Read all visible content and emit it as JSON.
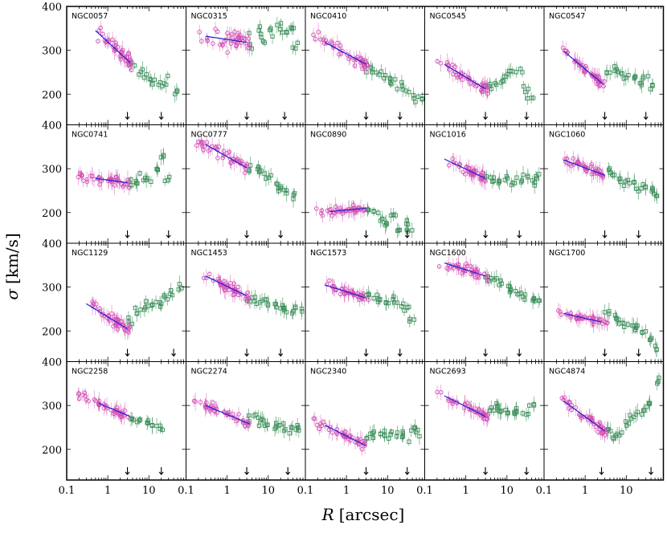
{
  "chart_data": {
    "type": "scatter",
    "layout": "small-multiples",
    "rows": 4,
    "cols": 5,
    "xlabel_symbol": "R",
    "xlabel_unit": "[arcsec]",
    "ylabel_symbol": "σ",
    "ylabel_unit": "[km/s]",
    "xscale": "log",
    "xlim": [
      0.1,
      80
    ],
    "ylim": [
      130,
      400
    ],
    "xticks": [
      0.1,
      1,
      10
    ],
    "xtick_labels": [
      "0.1",
      "1",
      "10"
    ],
    "yticks": [
      200,
      300,
      400
    ],
    "ytick_labels": [
      "200",
      "300",
      "400"
    ],
    "series_styles": [
      {
        "name": "inner (magenta circles)",
        "color": "#d24fb5",
        "marker": "circle"
      },
      {
        "name": "outer (green squares)",
        "color": "#3b8f5a",
        "marker": "square"
      },
      {
        "name": "fit",
        "color": "#1f1fd0",
        "marker": "line"
      }
    ],
    "panels": [
      {
        "name": "NGC0057",
        "inner_x": [
          0.45,
          3.8
        ],
        "fit": [
          [
            0.5,
            345
          ],
          [
            3.5,
            272
          ]
        ],
        "outer": [
          [
            4,
            265
          ],
          [
            6,
            248
          ],
          [
            9,
            240
          ],
          [
            12,
            230
          ],
          [
            20,
            225
          ],
          [
            25,
            228
          ],
          [
            45,
            205
          ]
        ],
        "scatter": 14,
        "arrows": [
          3,
          20
        ]
      },
      {
        "name": "NGC0315",
        "inner_x": [
          0.15,
          3.5
        ],
        "fit": [
          [
            0.3,
            332
          ],
          [
            3,
            318
          ]
        ],
        "outer": [
          [
            4,
            325
          ],
          [
            6,
            335
          ],
          [
            8,
            330
          ],
          [
            12,
            340
          ],
          [
            18,
            345
          ],
          [
            25,
            340
          ],
          [
            35,
            350
          ],
          [
            45,
            320
          ]
        ],
        "scatter": 20,
        "arrows": [
          3,
          25
        ]
      },
      {
        "name": "NGC0410",
        "inner_x": [
          0.12,
          3.5
        ],
        "fit": [
          [
            0.3,
            318
          ],
          [
            3,
            268
          ]
        ],
        "outer": [
          [
            3.5,
            262
          ],
          [
            5,
            255
          ],
          [
            7,
            248
          ],
          [
            10,
            238
          ],
          [
            14,
            230
          ],
          [
            20,
            218
          ],
          [
            28,
            205
          ],
          [
            40,
            198
          ],
          [
            60,
            192
          ]
        ],
        "scatter": 15,
        "arrows": [
          3,
          20
        ]
      },
      {
        "name": "NGC0545",
        "inner_x": [
          0.2,
          3.5
        ],
        "fit": [
          [
            0.3,
            268
          ],
          [
            3,
            212
          ]
        ],
        "outer": [
          [
            3.5,
            215
          ],
          [
            5,
            218
          ],
          [
            7,
            230
          ],
          [
            9,
            240
          ],
          [
            12,
            250
          ],
          [
            20,
            255
          ],
          [
            30,
            210
          ],
          [
            38,
            190
          ]
        ],
        "scatter": 12,
        "arrows": [
          3,
          30
        ]
      },
      {
        "name": "NGC0547",
        "inner_x": [
          0.15,
          3.0
        ],
        "fit": [
          [
            0.3,
            298
          ],
          [
            2.8,
            222
          ]
        ],
        "outer": [
          [
            3.5,
            248
          ],
          [
            5,
            258
          ],
          [
            7,
            245
          ],
          [
            10,
            240
          ],
          [
            14,
            235
          ],
          [
            20,
            225
          ],
          [
            30,
            240
          ],
          [
            40,
            215
          ]
        ],
        "scatter": 10,
        "arrows": [
          3,
          30
        ]
      },
      {
        "name": "NGC0741",
        "inner_x": [
          0.15,
          3.3
        ],
        "fit": [
          [
            0.5,
            278
          ],
          [
            3,
            268
          ]
        ],
        "outer": [
          [
            3.5,
            272
          ],
          [
            5,
            268
          ],
          [
            7,
            282
          ],
          [
            10,
            278
          ],
          [
            15,
            300
          ],
          [
            22,
            325
          ],
          [
            28,
            275
          ]
        ],
        "scatter": 10,
        "arrows": [
          3,
          30
        ]
      },
      {
        "name": "NGC0777",
        "inner_x": [
          0.12,
          3.5
        ],
        "fit": [
          [
            0.3,
            355
          ],
          [
            3,
            302
          ]
        ],
        "outer": [
          [
            3.5,
            300
          ],
          [
            5,
            295
          ],
          [
            7,
            288
          ],
          [
            10,
            280
          ],
          [
            15,
            265
          ],
          [
            20,
            255
          ],
          [
            28,
            250
          ],
          [
            40,
            240
          ]
        ],
        "scatter": 14,
        "arrows": [
          3,
          20
        ]
      },
      {
        "name": "NGC0890",
        "inner_x": [
          0.15,
          3.0
        ],
        "fit": [
          [
            0.4,
            202
          ],
          [
            3,
            210
          ]
        ],
        "outer": [
          [
            3.5,
            205
          ],
          [
            5,
            200
          ],
          [
            7,
            185
          ],
          [
            10,
            175
          ],
          [
            14,
            195
          ],
          [
            20,
            160
          ],
          [
            28,
            175
          ],
          [
            35,
            160
          ]
        ],
        "scatter": 8,
        "arrows": [
          3,
          30
        ]
      },
      {
        "name": "NGC1016",
        "inner_x": [
          0.3,
          3.0
        ],
        "fit": [
          [
            0.3,
            322
          ],
          [
            3,
            278
          ]
        ],
        "outer": [
          [
            3.5,
            280
          ],
          [
            5,
            275
          ],
          [
            7,
            268
          ],
          [
            10,
            280
          ],
          [
            14,
            270
          ],
          [
            20,
            275
          ],
          [
            28,
            282
          ],
          [
            40,
            268
          ],
          [
            55,
            280
          ]
        ],
        "scatter": 10,
        "arrows": [
          3,
          20
        ]
      },
      {
        "name": "NGC1060",
        "inner_x": [
          0.3,
          3.0
        ],
        "fit": [
          [
            0.3,
            320
          ],
          [
            3,
            285
          ]
        ],
        "outer": [
          [
            3.5,
            295
          ],
          [
            5,
            285
          ],
          [
            7,
            275
          ],
          [
            10,
            270
          ],
          [
            14,
            265
          ],
          [
            20,
            255
          ],
          [
            28,
            262
          ],
          [
            40,
            255
          ],
          [
            55,
            238
          ]
        ],
        "scatter": 10,
        "arrows": [
          3,
          20
        ]
      },
      {
        "name": "NGC1129",
        "inner_x": [
          0.3,
          3.5
        ],
        "fit": [
          [
            0.3,
            262
          ],
          [
            3,
            205
          ]
        ],
        "outer": [
          [
            3.5,
            225
          ],
          [
            5,
            245
          ],
          [
            7,
            255
          ],
          [
            10,
            260
          ],
          [
            14,
            262
          ],
          [
            20,
            268
          ],
          [
            28,
            280
          ],
          [
            40,
            285
          ],
          [
            60,
            300
          ]
        ],
        "scatter": 15,
        "arrows": [
          3,
          40
        ]
      },
      {
        "name": "NGC1453",
        "inner_x": [
          0.2,
          3.5
        ],
        "fit": [
          [
            0.3,
            325
          ],
          [
            3,
            280
          ]
        ],
        "outer": [
          [
            3.5,
            275
          ],
          [
            5,
            268
          ],
          [
            7,
            262
          ],
          [
            10,
            265
          ],
          [
            14,
            258
          ],
          [
            20,
            255
          ],
          [
            28,
            250
          ],
          [
            40,
            250
          ],
          [
            55,
            245
          ]
        ],
        "scatter": 12,
        "arrows": [
          3,
          20
        ]
      },
      {
        "name": "NGC1573",
        "inner_x": [
          0.3,
          3.5
        ],
        "fit": [
          [
            0.3,
            305
          ],
          [
            3,
            275
          ]
        ],
        "outer": [
          [
            3.5,
            285
          ],
          [
            5,
            275
          ],
          [
            7,
            270
          ],
          [
            10,
            265
          ],
          [
            14,
            270
          ],
          [
            20,
            260
          ],
          [
            28,
            250
          ],
          [
            38,
            220
          ]
        ],
        "scatter": 10,
        "arrows": [
          3,
          20
        ]
      },
      {
        "name": "NGC1600",
        "inner_x": [
          0.2,
          3.5
        ],
        "fit": [
          [
            0.3,
            355
          ],
          [
            3,
            325
          ]
        ],
        "outer": [
          [
            3.5,
            320
          ],
          [
            5,
            315
          ],
          [
            7,
            305
          ],
          [
            10,
            298
          ],
          [
            14,
            290
          ],
          [
            20,
            282
          ],
          [
            28,
            275
          ],
          [
            40,
            270
          ],
          [
            55,
            265
          ]
        ],
        "scatter": 12,
        "arrows": [
          3,
          20
        ]
      },
      {
        "name": "NGC1700",
        "inner_x": [
          0.2,
          3.5
        ],
        "fit": [
          [
            0.3,
            240
          ],
          [
            2.5,
            220
          ]
        ],
        "outer": [
          [
            3.5,
            240
          ],
          [
            5,
            232
          ],
          [
            7,
            222
          ],
          [
            10,
            215
          ],
          [
            14,
            210
          ],
          [
            20,
            205
          ],
          [
            28,
            195
          ],
          [
            40,
            180
          ],
          [
            60,
            160
          ]
        ],
        "scatter": 10,
        "arrows": [
          3,
          20
        ]
      },
      {
        "name": "NGC2258",
        "inner_x": [
          0.15,
          3.5
        ],
        "fit": [
          [
            0.6,
            305
          ],
          [
            3.5,
            275
          ]
        ],
        "outer": [
          [
            4,
            270
          ],
          [
            6,
            265
          ],
          [
            9,
            262
          ],
          [
            14,
            255
          ],
          [
            20,
            248
          ]
        ],
        "scatter": 10,
        "arrows": [
          3,
          20
        ]
      },
      {
        "name": "NGC2274",
        "inner_x": [
          0.12,
          3.5
        ],
        "fit": [
          [
            0.3,
            300
          ],
          [
            3.5,
            258
          ]
        ],
        "outer": [
          [
            4,
            275
          ],
          [
            5.5,
            270
          ],
          [
            7,
            262
          ],
          [
            10,
            255
          ],
          [
            14,
            250
          ],
          [
            20,
            258
          ],
          [
            28,
            240
          ],
          [
            40,
            245
          ],
          [
            55,
            250
          ]
        ],
        "scatter": 12,
        "arrows": [
          3,
          30
        ]
      },
      {
        "name": "NGC2340",
        "inner_x": [
          0.12,
          3.5
        ],
        "fit": [
          [
            0.3,
            255
          ],
          [
            3,
            208
          ]
        ],
        "outer": [
          [
            3.5,
            225
          ],
          [
            5,
            235
          ],
          [
            7,
            240
          ],
          [
            10,
            228
          ],
          [
            14,
            235
          ],
          [
            20,
            232
          ],
          [
            28,
            230
          ],
          [
            40,
            238
          ],
          [
            55,
            242
          ]
        ],
        "scatter": 14,
        "arrows": [
          3,
          30
        ]
      },
      {
        "name": "NGC2693",
        "inner_x": [
          0.2,
          3.5
        ],
        "fit": [
          [
            0.3,
            322
          ],
          [
            3,
            275
          ]
        ],
        "outer": [
          [
            4,
            292
          ],
          [
            5.5,
            300
          ],
          [
            7,
            288
          ],
          [
            10,
            285
          ],
          [
            14,
            280
          ],
          [
            20,
            292
          ],
          [
            28,
            280
          ],
          [
            40,
            298
          ]
        ],
        "scatter": 10,
        "arrows": [
          3,
          30
        ]
      },
      {
        "name": "NGC4874",
        "inner_x": [
          0.2,
          3.5
        ],
        "fit": [
          [
            0.3,
            310
          ],
          [
            3,
            242
          ]
        ],
        "outer": [
          [
            4,
            240
          ],
          [
            5.5,
            225
          ],
          [
            7,
            235
          ],
          [
            10,
            258
          ],
          [
            14,
            275
          ],
          [
            20,
            282
          ],
          [
            28,
            295
          ],
          [
            40,
            305
          ],
          [
            60,
            355
          ]
        ],
        "scatter": 12,
        "arrows": [
          2.5,
          40
        ]
      }
    ]
  }
}
